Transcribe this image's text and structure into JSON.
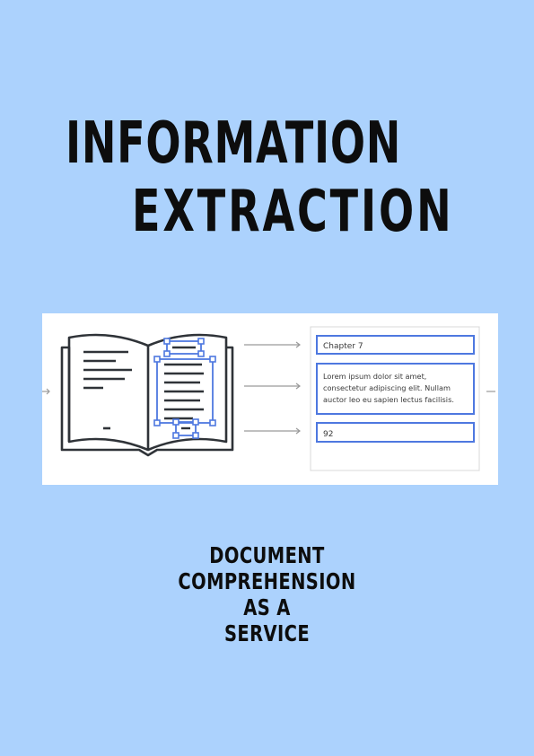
{
  "title": {
    "line1": "INFORMATION",
    "line2": "EXTRACTION"
  },
  "illustration": {
    "field_heading": "Chapter 7",
    "field_body_lines": [
      "Lorem ipsum dolor sit amet,",
      "consectetur adipiscing elit. Nullam",
      "auctor leo eu sapien lectus facilisis."
    ],
    "field_page_number": "92",
    "colors": {
      "book_stroke": "#2f3338",
      "selection_blue": "#4e78e0",
      "arrow_gray": "#9a9a9a"
    }
  },
  "subtitle": {
    "lines": [
      "DOCUMENT",
      "COMPREHENSION",
      "AS A",
      "SERVICE"
    ]
  },
  "colors": {
    "background": "#acd2fd",
    "text": "#0d0d0d"
  }
}
